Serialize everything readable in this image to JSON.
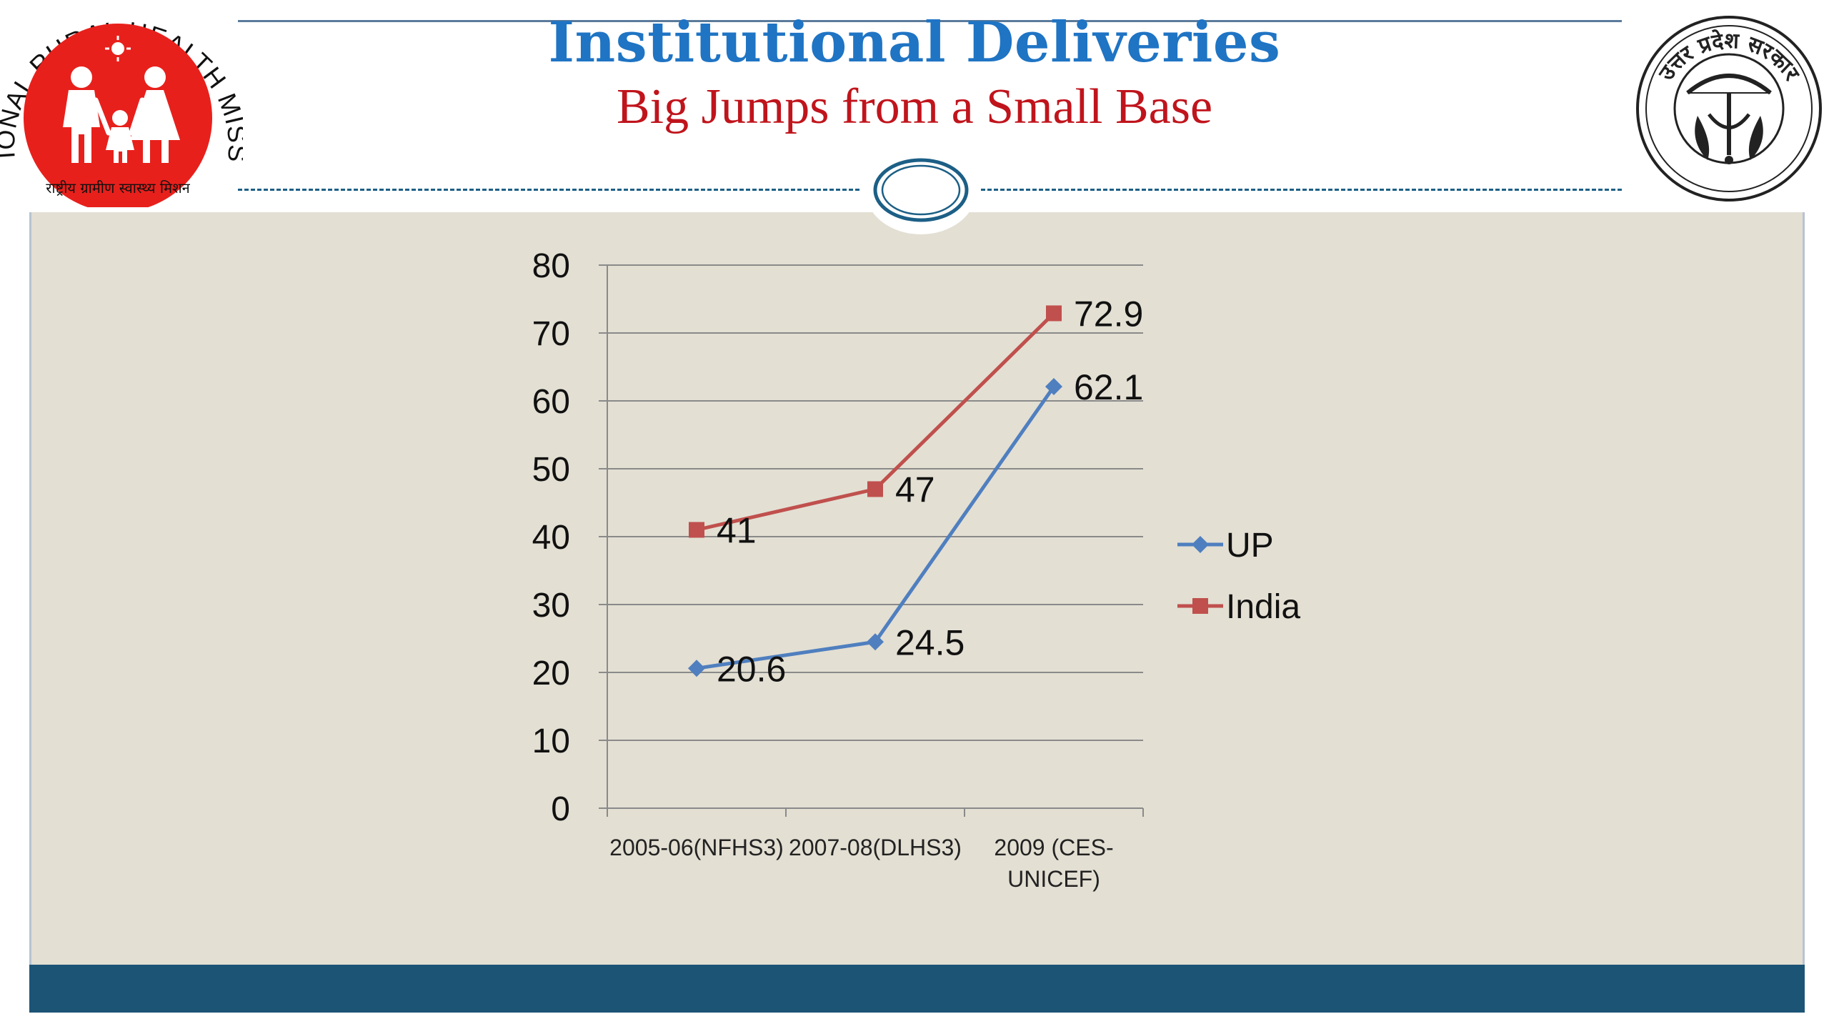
{
  "header": {
    "title": "Institutional Deliveries",
    "subtitle": "Big Jumps from a Small Base",
    "left_logo": {
      "icon": "nrhm-logo-icon",
      "arc_text": "NATIONAL RURAL HEALTH MISSION",
      "hindi_text": "राष्ट्रीय ग्रामीण स्वास्थ्य मिशन",
      "color": "#e8201c"
    },
    "right_logo": {
      "icon": "uttar-pradesh-seal-icon",
      "arc_text": "उत्तर प्रदेश सरकार"
    }
  },
  "colors": {
    "title": "#1f74c4",
    "subtitle": "#c0141c",
    "panel": "#e3dfd3",
    "bottom_bar": "#1c5476",
    "up_series": "#4f7fbf",
    "india_series": "#c0504d"
  },
  "chart_data": {
    "type": "line",
    "categories": [
      "2005-06(NFHS3)",
      "2007-08(DLHS3)",
      "2009 (CES-UNICEF)"
    ],
    "category_lines": [
      [
        "2005-06(NFHS3)"
      ],
      [
        "2007-08(DLHS3)"
      ],
      [
        "2009 (CES-",
        "UNICEF)"
      ]
    ],
    "ylim": [
      0,
      80
    ],
    "yticks": [
      0,
      10,
      20,
      30,
      40,
      50,
      60,
      70,
      80
    ],
    "grid": true,
    "legend_position": "right",
    "series": [
      {
        "name": "UP",
        "values": [
          20.6,
          24.5,
          62.1
        ],
        "labels": [
          "20.6",
          "24.5",
          "62.1"
        ],
        "color": "#4f7fbf",
        "marker": "diamond"
      },
      {
        "name": "India",
        "values": [
          41,
          47,
          72.9
        ],
        "labels": [
          "41",
          "47",
          "72.9"
        ],
        "color": "#c0504d",
        "marker": "square"
      }
    ]
  }
}
